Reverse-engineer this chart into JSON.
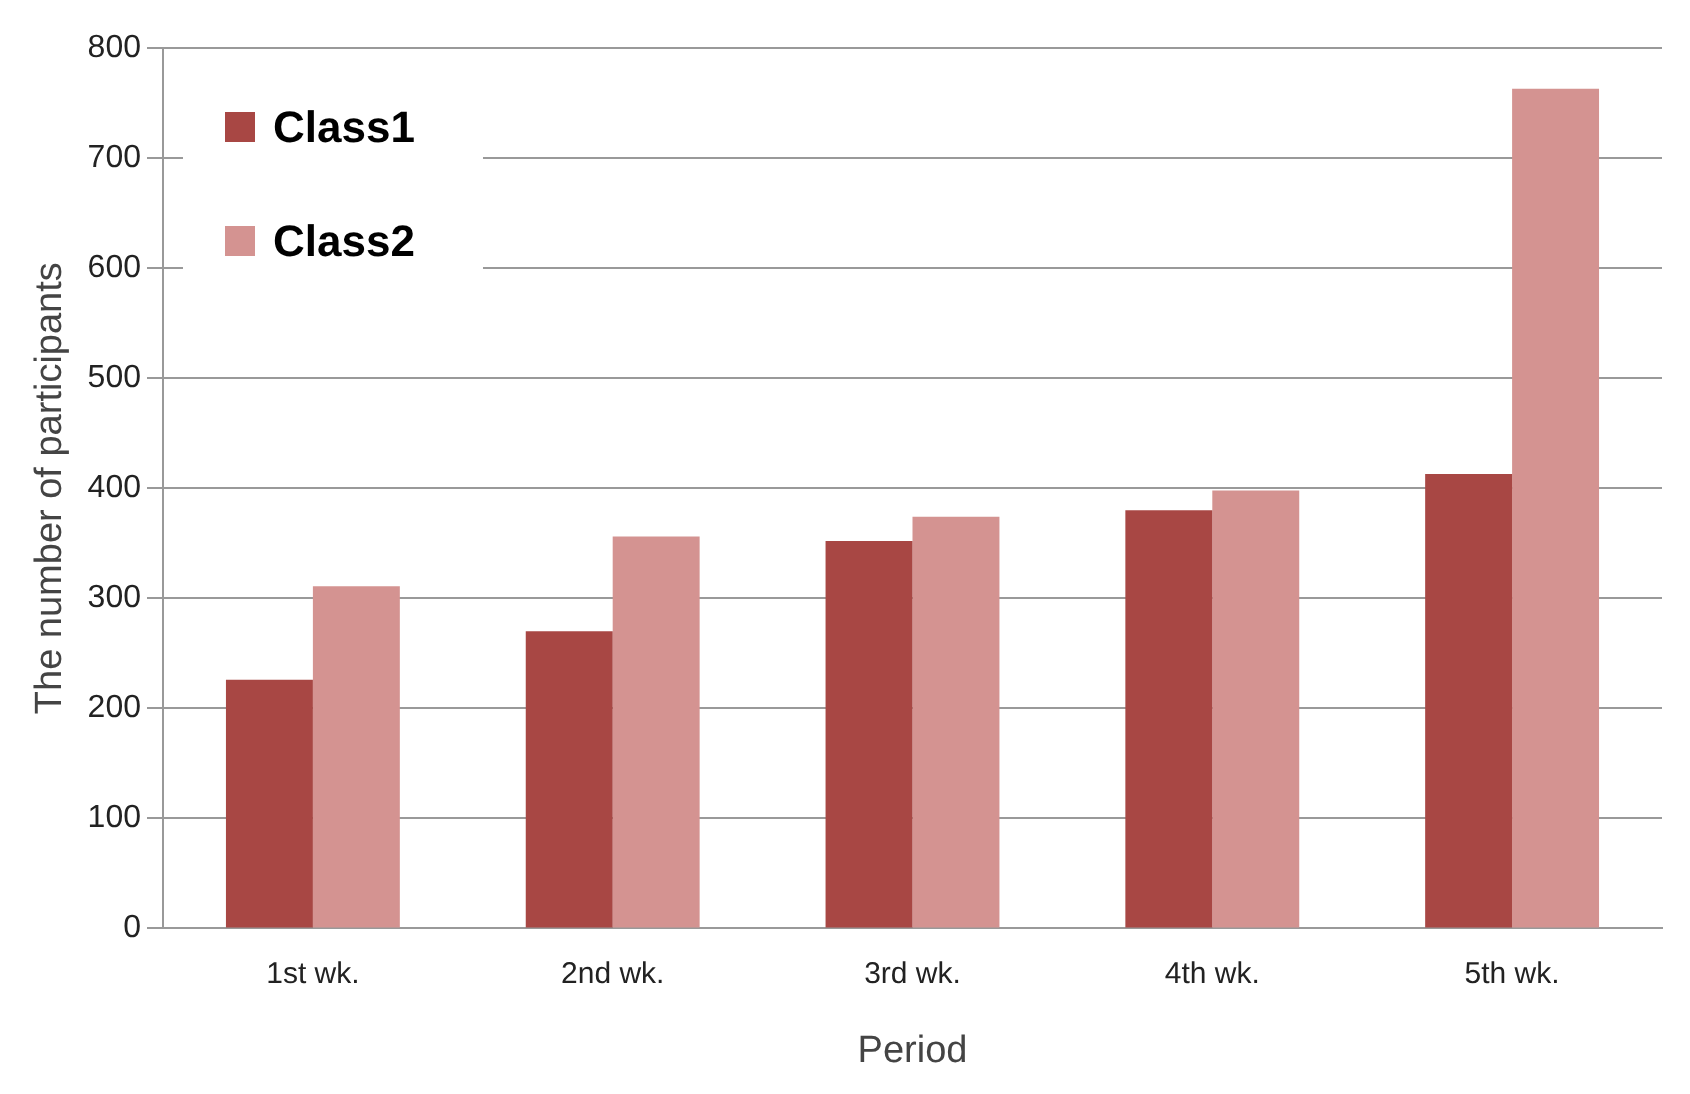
{
  "chart_data": {
    "type": "bar",
    "xlabel": "Period",
    "ylabel": "The number of participants",
    "categories": [
      "1st wk.",
      "2nd wk.",
      "3rd wk.",
      "4th wk.",
      "5th wk."
    ],
    "series": [
      {
        "name": "Class1",
        "color": "#a84744",
        "values": [
          226,
          270,
          352,
          380,
          413
        ]
      },
      {
        "name": "Class2",
        "color": "#d49391",
        "values": [
          311,
          356,
          374,
          398,
          763
        ]
      }
    ],
    "ylim": [
      0,
      800
    ],
    "yticks": [
      0,
      100,
      200,
      300,
      400,
      500,
      600,
      700,
      800
    ],
    "grid": "y",
    "legend": "top left"
  }
}
